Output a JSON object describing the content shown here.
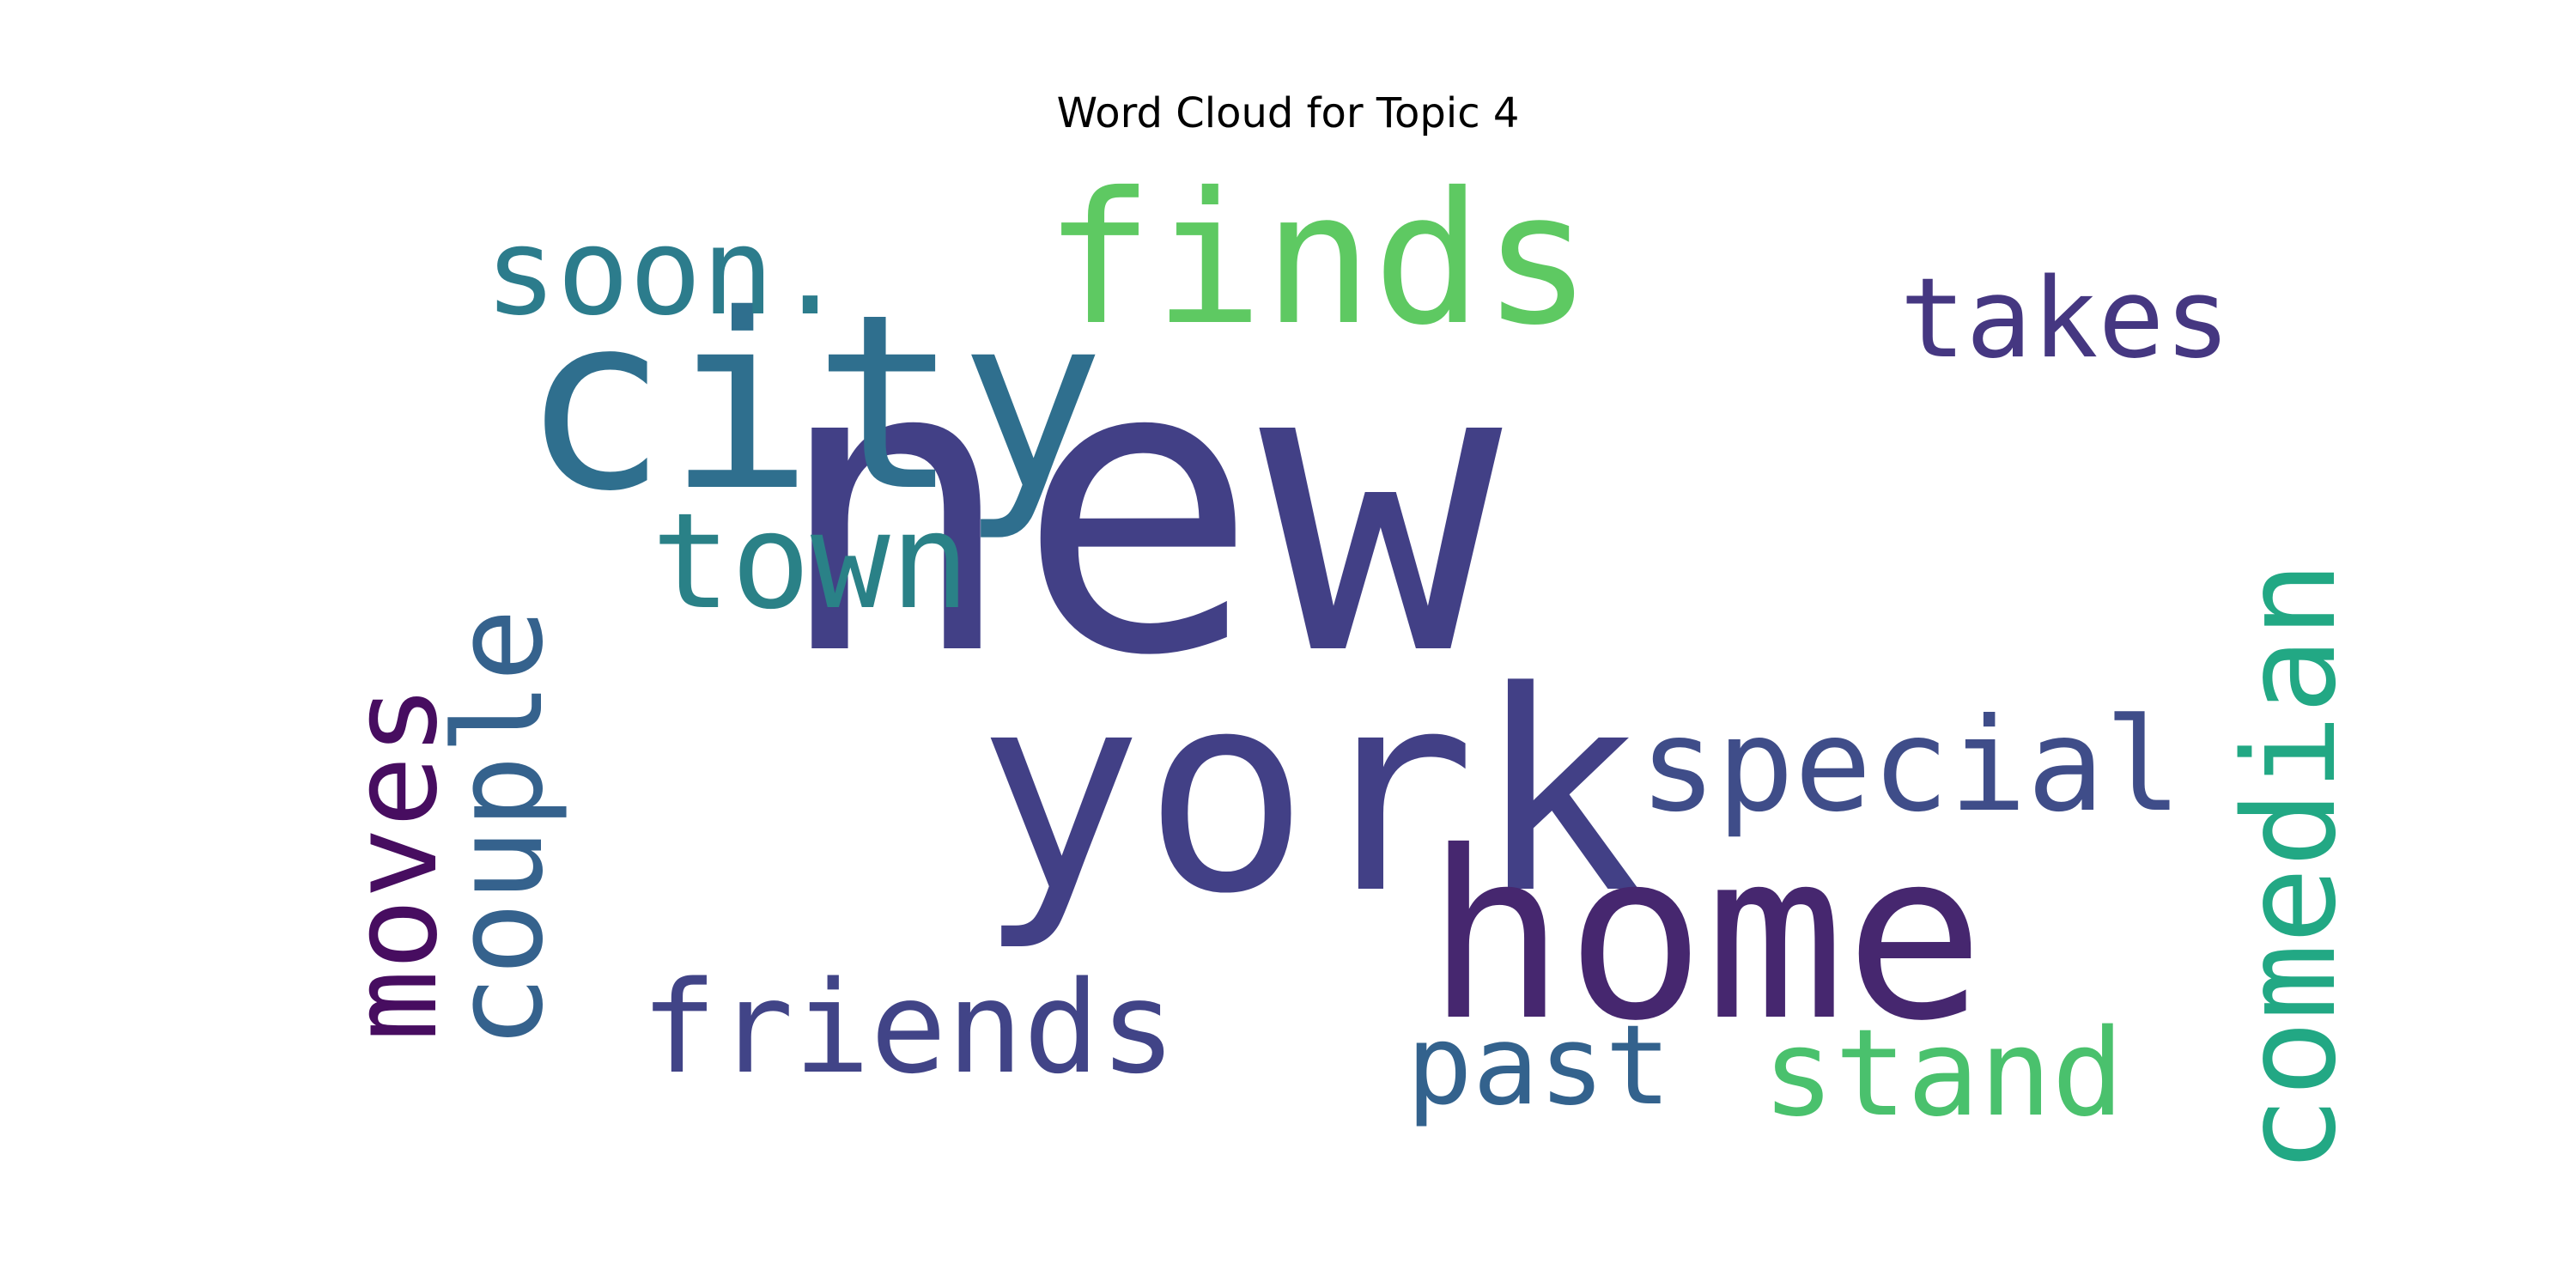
{
  "chart_data": {
    "type": "wordcloud",
    "title": "Word Cloud for Topic 4",
    "words": [
      {
        "text": "new",
        "weight": 1.0,
        "color": "#424086",
        "orientation": "horizontal"
      },
      {
        "text": "york",
        "weight": 0.82,
        "color": "#424086",
        "orientation": "horizontal"
      },
      {
        "text": "city",
        "weight": 0.68,
        "color": "#2f6f8e",
        "orientation": "horizontal"
      },
      {
        "text": "home",
        "weight": 0.62,
        "color": "#46276f",
        "orientation": "horizontal"
      },
      {
        "text": "finds",
        "weight": 0.5,
        "color": "#5ec962",
        "orientation": "horizontal"
      },
      {
        "text": "town",
        "weight": 0.38,
        "color": "#2a8187",
        "orientation": "horizontal"
      },
      {
        "text": "special",
        "weight": 0.36,
        "color": "#3f4d89",
        "orientation": "horizontal"
      },
      {
        "text": "comedian",
        "weight": 0.36,
        "color": "#22a884",
        "orientation": "vertical"
      },
      {
        "text": "soon.",
        "weight": 0.34,
        "color": "#2c7c8c",
        "orientation": "horizontal"
      },
      {
        "text": "couple",
        "weight": 0.34,
        "color": "#35628d",
        "orientation": "vertical"
      },
      {
        "text": "moves",
        "weight": 0.33,
        "color": "#470d60",
        "orientation": "vertical"
      },
      {
        "text": "stand",
        "weight": 0.33,
        "color": "#4ac16d",
        "orientation": "horizontal"
      },
      {
        "text": "takes",
        "weight": 0.32,
        "color": "#453781",
        "orientation": "horizontal"
      },
      {
        "text": "friends",
        "weight": 0.32,
        "color": "#414487",
        "orientation": "horizontal"
      },
      {
        "text": "past",
        "weight": 0.31,
        "color": "#33628d",
        "orientation": "horizontal"
      }
    ]
  }
}
